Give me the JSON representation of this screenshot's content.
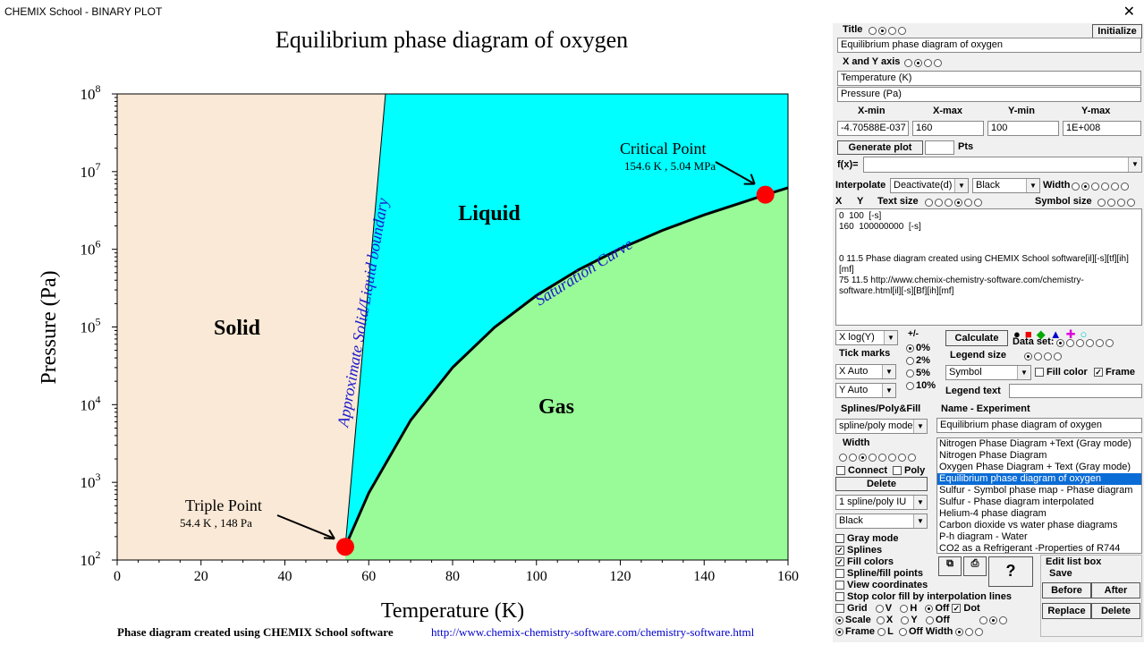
{
  "window": {
    "title": "CHEMIX School - BINARY PLOT",
    "close": "✕"
  },
  "plot": {
    "title": "Equilibrium phase diagram of oxygen",
    "xlabel": "Temperature (K)",
    "ylabel": "Pressure (Pa)",
    "xticks": [
      "0",
      "20",
      "40",
      "60",
      "80",
      "100",
      "120",
      "140",
      "160"
    ],
    "ytick_base": "10",
    "ytick_exps": [
      "2",
      "3",
      "4",
      "5",
      "6",
      "7",
      "8"
    ],
    "regions": {
      "solid": "Solid",
      "liquid": "Liquid",
      "gas": "Gas"
    },
    "saturation_label": "Saturation Curve",
    "boundary_label": "Approximate Solid/Liquid boundary",
    "triple_point": {
      "label": "Triple Point",
      "value": "54.4 K , 148 Pa"
    },
    "critical_point": {
      "label": "Critical Point",
      "value": "154.6 K , 5.04 MPa"
    },
    "footer_text": "Phase diagram created using CHEMIX School software",
    "footer_link": "http://www.chemix-chemistry-software.com/chemistry-software.html",
    "colors": {
      "solid": "#fae9d6",
      "liquid": "#00ffff",
      "gas": "#98fb98",
      "point": "#ff0000",
      "annotation": "#1a1acc"
    }
  },
  "chart_data": {
    "type": "line",
    "title": "Equilibrium phase diagram of oxygen",
    "xlabel": "Temperature (K)",
    "ylabel": "Pressure (Pa)",
    "xlim": [
      0,
      160
    ],
    "ylim": [
      100,
      100000000
    ],
    "yscale": "log",
    "series": [
      {
        "name": "Saturation Curve",
        "x": [
          54.4,
          60,
          70,
          80,
          90,
          100,
          110,
          120,
          130,
          140,
          150,
          154.6
        ],
        "y": [
          148,
          730,
          6300,
          30100,
          99000,
          254000,
          543000,
          1020000,
          1750000,
          2770000,
          4160000,
          5040000
        ]
      },
      {
        "name": "Approximate Solid/Liquid boundary",
        "x": [
          54.4,
          64
        ],
        "y": [
          148,
          100000000
        ]
      }
    ],
    "points": [
      {
        "label": "Triple Point",
        "x": 54.4,
        "y": 148
      },
      {
        "label": "Critical Point",
        "x": 154.6,
        "y": 5040000
      }
    ],
    "extension": {
      "x": [
        154.6,
        160
      ],
      "y": [
        5040000,
        6200000
      ]
    }
  },
  "panel": {
    "title_label": "Title",
    "initialize": "Initialize",
    "title_value": "Equilibrium phase diagram of oxygen",
    "xy_axis_label": "X and Y axis",
    "x_axis_value": "Temperature (K)",
    "y_axis_value": "Pressure (Pa)",
    "xmin_label": "X-min",
    "xmax_label": "X-max",
    "ymin_label": "Y-min",
    "ymax_label": "Y-max",
    "xmin": "-4.70588E-037",
    "xmax": "160",
    "ymin": "100",
    "ymax": "1E+008",
    "generate_plot": "Generate plot",
    "pts": "Pts",
    "fx_label": "f(x)=",
    "interpolate_label": "Interpolate",
    "interpolate_value": "Deactivate(d)",
    "color_value": "Black",
    "width_label": "Width",
    "x_label": "X",
    "y_label": "Y",
    "text_size_label": "Text size",
    "symbol_size_label": "Symbol size",
    "data_lines": [
      "0  100  [-s]",
      "160  100000000  [-s]",
      "",
      "",
      "0 11.5 Phase diagram created using CHEMIX School software[il][-s][tf][ih][mf]",
      "75 11.5 http://www.chemix-chemistry-software.com/chemistry-software.html[il][-s][Bf][ih][mf]"
    ],
    "scale_select": "X  log(Y)",
    "plusminus": "+/-",
    "calculate": "Calculate",
    "dataset_label": "Data set:",
    "pct": [
      "0%",
      "2%",
      "5%",
      "10%"
    ],
    "tick_marks": "Tick marks",
    "x_auto": "X  Auto",
    "y_auto": "Y  Auto",
    "legend_size": "Legend  size",
    "symbol_select": "Symbol",
    "fill_color": "Fill color",
    "frame": "Frame",
    "legend_text": "Legend text",
    "splines_label": "Splines/Poly&Fill",
    "spline_mode": "spline/poly mode",
    "width_label2": "Width",
    "connect": "Connect",
    "poly": "Poly",
    "delete": "Delete",
    "spline_select": "1   spline/poly IU",
    "black_select": "Black",
    "name_label": "Name - Experiment",
    "name_value": "Equilibrium phase diagram of oxygen",
    "experiments": [
      "Nitrogen Phase Diagram +Text (Gray mode)",
      "Nitrogen Phase Diagram",
      "Oxygen Phase Diagram + Text (Gray mode)",
      "Equilibrium phase diagram of oxygen",
      "Sulfur - Symbol phase map - Phase diagram",
      "Sulfur - Phase diagram interpolated",
      "Helium-4 phase diagram",
      "Carbon dioxide vs water phase diagrams",
      "P-h diagram - Water",
      "CO2 as a Refrigerant -Properties of R744"
    ],
    "gray_mode": "Gray mode",
    "splines": "Splines",
    "fill_colors": "Fill colors",
    "spline_fill_points": "Spline/fill points",
    "view_coordinates": "View coordinates",
    "stop_color_fill": "Stop color fill by interpolation lines",
    "grid": "Grid",
    "v": "V",
    "h": "H",
    "off": "Off",
    "dot": "Dot",
    "scale": "Scale",
    "x": "X",
    "y": "Y",
    "off2": "Off",
    "frame2": "Frame",
    "l": "L",
    "off_width": "Off Width",
    "edit_list_box": "Edit list box",
    "save": "Save",
    "before": "Before",
    "after": "After",
    "replace": "Replace",
    "delete2": "Delete",
    "help_q": "?"
  }
}
